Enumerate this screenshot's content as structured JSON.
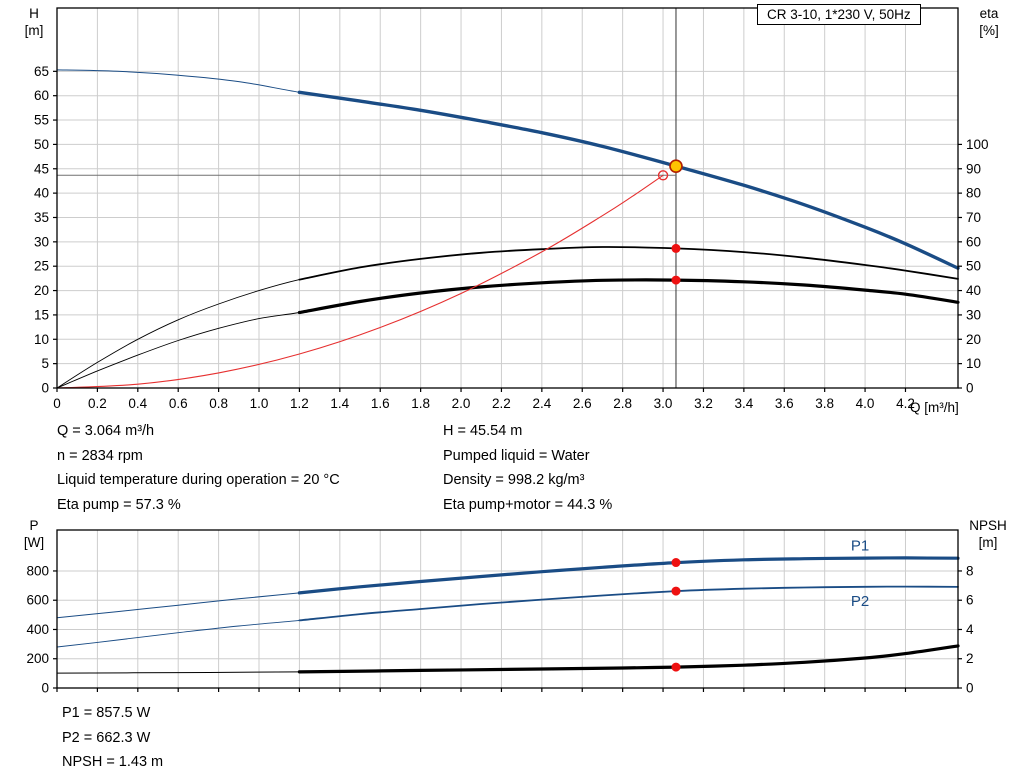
{
  "title_box": "CR 3-10, 1*230 V, 50Hz",
  "colors": {
    "curve_blue": "#1a4c85",
    "curve_black": "#000000",
    "curve_red": "#e63030",
    "grid": "#cdcdcd",
    "axis": "#000000",
    "op_point_fill": "#ffc400",
    "op_point_ring": "#b22000",
    "duty_dot": "#ee1111"
  },
  "info_top": {
    "left": [
      "Q = 3.064 m³/h",
      "n = 2834 rpm",
      "Liquid temperature during operation = 20 °C",
      "Eta pump = 57.3 %"
    ],
    "right": [
      "H = 45.54 m",
      "Pumped liquid = Water",
      "Density = 998.2 kg/m³",
      "Eta pump+motor = 44.3 %"
    ]
  },
  "info_bottom": [
    "P1 = 857.5 W",
    "P2 = 662.3 W",
    "NPSH = 1.43 m"
  ],
  "chart_data": [
    {
      "type": "line",
      "name": "qh-eta-chart",
      "x": {
        "label": "Q [m³/h]",
        "min": 0,
        "max": 4.46,
        "show_labels": true,
        "ticks": [
          0,
          0.2,
          0.4,
          0.6,
          0.8,
          1.0,
          1.2,
          1.4,
          1.6,
          1.8,
          2.0,
          2.2,
          2.4,
          2.6,
          2.8,
          3.0,
          3.2,
          3.4,
          3.6,
          3.8,
          4.0,
          4.2
        ]
      },
      "y_left": {
        "name": "H",
        "unit": "[m]",
        "min": 0,
        "max": 78,
        "ticks": [
          0,
          5,
          10,
          15,
          20,
          25,
          30,
          35,
          40,
          45,
          50,
          55,
          60,
          65
        ]
      },
      "y_right": {
        "name": "eta",
        "unit": "[%]",
        "min": 0,
        "max": 156,
        "ticks": [
          0,
          10,
          20,
          30,
          40,
          50,
          60,
          70,
          80,
          90,
          100
        ]
      },
      "series": [
        {
          "name": "head-curve",
          "axis": "left",
          "color": "#1a4c85",
          "thin": 1,
          "thick": 3.4,
          "thick_from": 1.2,
          "points": [
            [
              0,
              65.3
            ],
            [
              0.3,
              65.0
            ],
            [
              0.6,
              64.2
            ],
            [
              0.9,
              62.9
            ],
            [
              1.2,
              60.7
            ],
            [
              1.5,
              58.9
            ],
            [
              1.8,
              57.0
            ],
            [
              2.1,
              54.8
            ],
            [
              2.4,
              52.4
            ],
            [
              2.7,
              49.6
            ],
            [
              3.064,
              45.54
            ],
            [
              3.4,
              41.6
            ],
            [
              3.7,
              37.6
            ],
            [
              4.0,
              33.0
            ],
            [
              4.2,
              29.6
            ],
            [
              4.46,
              24.6
            ]
          ]
        },
        {
          "name": "eta-pump-curve",
          "axis": "right",
          "color": "#000000",
          "thin": 0.9,
          "thick": 1.8,
          "thick_from": 1.2,
          "points": [
            [
              0,
              0
            ],
            [
              0.2,
              10.5
            ],
            [
              0.4,
              20
            ],
            [
              0.6,
              28
            ],
            [
              0.8,
              34.5
            ],
            [
              1.0,
              40
            ],
            [
              1.2,
              44.5
            ],
            [
              1.5,
              49.5
            ],
            [
              1.8,
              53
            ],
            [
              2.1,
              55.5
            ],
            [
              2.4,
              57
            ],
            [
              2.7,
              57.9
            ],
            [
              3.064,
              57.3
            ],
            [
              3.4,
              55.8
            ],
            [
              3.7,
              53.5
            ],
            [
              4.0,
              50.5
            ],
            [
              4.2,
              48.2
            ],
            [
              4.46,
              44.8
            ]
          ]
        },
        {
          "name": "eta-pump-motor-curve",
          "axis": "right",
          "color": "#000000",
          "thin": 0.9,
          "thick": 3.2,
          "thick_from": 1.2,
          "points": [
            [
              0,
              0
            ],
            [
              0.2,
              7
            ],
            [
              0.4,
              13.5
            ],
            [
              0.6,
              19.5
            ],
            [
              0.8,
              24.5
            ],
            [
              1.0,
              28.5
            ],
            [
              1.2,
              31
            ],
            [
              1.5,
              35.5
            ],
            [
              1.8,
              39
            ],
            [
              2.1,
              41.5
            ],
            [
              2.4,
              43.2
            ],
            [
              2.7,
              44.2
            ],
            [
              3.064,
              44.3
            ],
            [
              3.4,
              43.6
            ],
            [
              3.7,
              42.3
            ],
            [
              4.0,
              40.2
            ],
            [
              4.2,
              38.5
            ],
            [
              4.46,
              35.2
            ]
          ]
        },
        {
          "name": "system-curve",
          "axis": "left",
          "color": "#e63030",
          "thin": 1.1,
          "points": [
            [
              0,
              0
            ],
            [
              0.4,
              0.78
            ],
            [
              0.8,
              3.1
            ],
            [
              1.2,
              6.98
            ],
            [
              1.6,
              12.42
            ],
            [
              2.0,
              19.4
            ],
            [
              2.4,
              27.94
            ],
            [
              2.7,
              35.36
            ],
            [
              2.85,
              39.4
            ],
            [
              3.0,
              43.66
            ]
          ]
        }
      ],
      "markers": [
        {
          "kind": "vline",
          "x": 3.064,
          "color": "#333333",
          "w": 1
        },
        {
          "kind": "hline",
          "y": 43.66,
          "axis": "left",
          "x_to": 3.064,
          "color": "#707070",
          "w": 1
        },
        {
          "kind": "open-dot",
          "x": 3.0,
          "y": 43.66,
          "axis": "left",
          "stroke": "#e63030",
          "r": 4.5
        },
        {
          "kind": "dot",
          "x": 3.064,
          "y": 45.54,
          "axis": "left",
          "fill": "#ffc400",
          "stroke": "#b22000",
          "r": 6
        },
        {
          "kind": "dot",
          "x": 3.064,
          "y": 57.3,
          "axis": "right",
          "fill": "#ee1111",
          "r": 4.5
        },
        {
          "kind": "dot",
          "x": 3.064,
          "y": 44.3,
          "axis": "right",
          "fill": "#ee1111",
          "r": 4.5
        }
      ],
      "annotations": []
    },
    {
      "type": "line",
      "name": "power-npsh-chart",
      "x": {
        "label": "",
        "min": 0,
        "max": 4.46,
        "show_labels": false,
        "ticks": [
          0,
          0.2,
          0.4,
          0.6,
          0.8,
          1.0,
          1.2,
          1.4,
          1.6,
          1.8,
          2.0,
          2.2,
          2.4,
          2.6,
          2.8,
          3.0,
          3.2,
          3.4,
          3.6,
          3.8,
          4.0,
          4.2
        ]
      },
      "y_left": {
        "name": "P",
        "unit": "[W]",
        "min": 0,
        "max": 1080,
        "ticks": [
          0,
          200,
          400,
          600,
          800
        ]
      },
      "y_right": {
        "name": "NPSH",
        "unit": "[m]",
        "min": 0,
        "max": 10.8,
        "ticks": [
          0,
          2,
          4,
          6,
          8
        ]
      },
      "series": [
        {
          "name": "p1-curve",
          "axis": "left",
          "color": "#1a4c85",
          "thin": 1,
          "thick": 3.2,
          "thick_from": 1.2,
          "points": [
            [
              0,
              480
            ],
            [
              0.3,
              522
            ],
            [
              0.6,
              566
            ],
            [
              0.9,
              610
            ],
            [
              1.2,
              650
            ],
            [
              1.5,
              692
            ],
            [
              1.8,
              728
            ],
            [
              2.1,
              762
            ],
            [
              2.4,
              795
            ],
            [
              2.7,
              825
            ],
            [
              3.064,
              857.5
            ],
            [
              3.4,
              876
            ],
            [
              3.7,
              884
            ],
            [
              4.0,
              888
            ],
            [
              4.2,
              889
            ],
            [
              4.46,
              887
            ]
          ]
        },
        {
          "name": "p2-curve",
          "axis": "left",
          "color": "#1a4c85",
          "thin": 0.9,
          "thick": 1.8,
          "thick_from": 1.2,
          "points": [
            [
              0,
              280
            ],
            [
              0.3,
              328
            ],
            [
              0.6,
              378
            ],
            [
              0.9,
              424
            ],
            [
              1.2,
              462
            ],
            [
              1.5,
              505
            ],
            [
              1.8,
              540
            ],
            [
              2.1,
              574
            ],
            [
              2.4,
              604
            ],
            [
              2.7,
              632
            ],
            [
              3.064,
              662.3
            ],
            [
              3.4,
              679
            ],
            [
              3.7,
              687
            ],
            [
              4.0,
              692
            ],
            [
              4.2,
              693
            ],
            [
              4.46,
              691
            ]
          ]
        },
        {
          "name": "npsh-curve",
          "axis": "right",
          "color": "#000000",
          "thin": 1,
          "thick": 3.2,
          "thick_from": 1.2,
          "points": [
            [
              0,
              1.02
            ],
            [
              0.6,
              1.05
            ],
            [
              1.2,
              1.1
            ],
            [
              1.8,
              1.2
            ],
            [
              2.4,
              1.3
            ],
            [
              2.8,
              1.37
            ],
            [
              3.064,
              1.43
            ],
            [
              3.4,
              1.56
            ],
            [
              3.7,
              1.76
            ],
            [
              4.0,
              2.05
            ],
            [
              4.2,
              2.35
            ],
            [
              4.46,
              2.88
            ]
          ]
        }
      ],
      "markers": [
        {
          "kind": "dot",
          "x": 3.064,
          "y": 857.5,
          "axis": "left",
          "fill": "#ee1111",
          "r": 4.5
        },
        {
          "kind": "dot",
          "x": 3.064,
          "y": 662.3,
          "axis": "left",
          "fill": "#ee1111",
          "r": 4.5
        },
        {
          "kind": "dot",
          "x": 3.064,
          "y": 1.43,
          "axis": "right",
          "fill": "#ee1111",
          "r": 4.5
        }
      ],
      "annotations": [
        {
          "text": "P1",
          "x": 3.93,
          "y": 940,
          "axis": "left",
          "color": "#1a4c85"
        },
        {
          "text": "P2",
          "x": 3.93,
          "y": 560,
          "axis": "left",
          "color": "#1a4c85"
        }
      ]
    }
  ]
}
